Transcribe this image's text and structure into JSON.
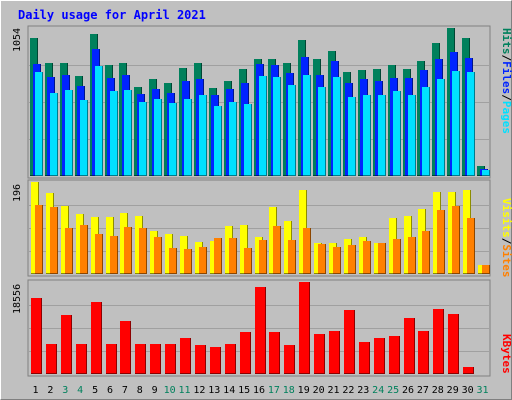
{
  "title": "Daily usage for April 2021",
  "colors": {
    "hits": "#00805c",
    "files": "#0024ff",
    "pages": "#00e0ff",
    "visits": "#ffff00",
    "sites": "#ff8000",
    "kbytes": "#ff0000",
    "weekday_tick": "#000000",
    "weekend_tick": "#00805c"
  },
  "chart_data": [
    {
      "type": "bar",
      "categories": [
        "1",
        "2",
        "3",
        "4",
        "5",
        "6",
        "7",
        "8",
        "9",
        "10",
        "11",
        "12",
        "13",
        "14",
        "15",
        "16",
        "17",
        "18",
        "19",
        "20",
        "21",
        "22",
        "23",
        "24",
        "25",
        "26",
        "27",
        "28",
        "29",
        "30",
        "31"
      ],
      "weekend_days": [
        3,
        4,
        10,
        11,
        17,
        18,
        24,
        25,
        31
      ],
      "ymax_label": "1054",
      "ylim": [
        0,
        1054
      ],
      "series": [
        {
          "name": "Hits",
          "values": [
            980,
            805,
            805,
            713,
            1012,
            790,
            805,
            632,
            690,
            660,
            770,
            805,
            625,
            680,
            765,
            835,
            830,
            805,
            970,
            830,
            890,
            740,
            755,
            764,
            790,
            764,
            820,
            945,
            1054,
            985,
            70
          ]
        },
        {
          "name": "Files",
          "values": [
            795,
            705,
            720,
            640,
            905,
            700,
            720,
            585,
            620,
            590,
            680,
            690,
            575,
            620,
            665,
            800,
            790,
            735,
            845,
            720,
            820,
            660,
            690,
            680,
            700,
            700,
            755,
            835,
            885,
            840,
            50
          ]
        },
        {
          "name": "Pages",
          "values": [
            740,
            590,
            615,
            540,
            780,
            605,
            610,
            525,
            545,
            520,
            550,
            575,
            500,
            530,
            515,
            710,
            705,
            650,
            720,
            635,
            705,
            565,
            575,
            580,
            605,
            580,
            635,
            690,
            750,
            740,
            40
          ]
        }
      ]
    },
    {
      "type": "bar",
      "categories": [
        "1",
        "2",
        "3",
        "4",
        "5",
        "6",
        "7",
        "8",
        "9",
        "10",
        "11",
        "12",
        "13",
        "14",
        "15",
        "16",
        "17",
        "18",
        "19",
        "20",
        "21",
        "22",
        "23",
        "24",
        "25",
        "26",
        "27",
        "28",
        "29",
        "30",
        "31"
      ],
      "ymax_label": "196",
      "ylim": [
        0,
        196
      ],
      "series": [
        {
          "name": "Visits",
          "values": [
            196,
            173,
            145,
            127,
            121,
            121,
            130,
            124,
            91,
            86,
            81,
            69,
            71,
            103,
            104,
            79,
            143,
            113,
            179,
            67,
            67,
            75,
            79,
            66,
            120,
            123,
            138,
            175,
            175,
            180,
            20
          ]
        },
        {
          "name": "Sites",
          "values": [
            148,
            142,
            98,
            104,
            85,
            82,
            100,
            98,
            78,
            55,
            54,
            58,
            76,
            77,
            55,
            73,
            103,
            72,
            98,
            63,
            58,
            61,
            70,
            66,
            74,
            78,
            91,
            137,
            145,
            120,
            20
          ]
        }
      ]
    },
    {
      "type": "bar",
      "categories": [
        "1",
        "2",
        "3",
        "4",
        "5",
        "6",
        "7",
        "8",
        "9",
        "10",
        "11",
        "12",
        "13",
        "14",
        "15",
        "16",
        "17",
        "18",
        "19",
        "20",
        "21",
        "22",
        "23",
        "24",
        "25",
        "26",
        "27",
        "28",
        "29",
        "30",
        "31"
      ],
      "ymax_label": "18556",
      "ylim": [
        0,
        18556
      ],
      "series": [
        {
          "name": "KBytes",
          "values": [
            15300,
            6100,
            12000,
            6050,
            14450,
            6050,
            10700,
            6000,
            6000,
            6000,
            7300,
            5950,
            5500,
            6000,
            8500,
            17500,
            8500,
            5800,
            18556,
            8000,
            8700,
            12900,
            6500,
            7300,
            7700,
            11300,
            8700,
            13200,
            12200,
            1400,
            0
          ]
        }
      ]
    }
  ],
  "legends": {
    "top": [
      {
        "text": "Hits",
        "color": "hits"
      },
      {
        "text": "/",
        "color": "sep"
      },
      {
        "text": "Files",
        "color": "files"
      },
      {
        "text": "/",
        "color": "sep"
      },
      {
        "text": "Pages",
        "color": "pages"
      }
    ],
    "mid": [
      {
        "text": "Visits",
        "color": "visits"
      },
      {
        "text": "/",
        "color": "sep"
      },
      {
        "text": "Sites",
        "color": "sites"
      }
    ],
    "bottom": [
      {
        "text": "KBytes",
        "color": "kbytes"
      }
    ]
  }
}
